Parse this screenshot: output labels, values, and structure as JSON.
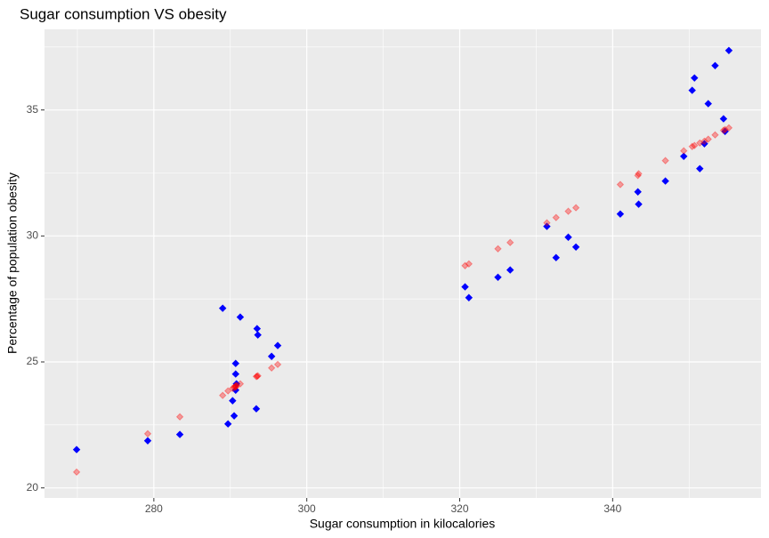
{
  "chart_data": {
    "type": "scatter",
    "title": "Sugar consumption VS obesity",
    "x_label": "Sugar consumption in kilocalories",
    "y_label": "Percentage of population obesity",
    "x": [
      269.9,
      279.2,
      283.4,
      289.0,
      289.7,
      290.3,
      290.5,
      290.7,
      290.7,
      290.8,
      290.7,
      291.3,
      293.5,
      293.6,
      293.4,
      295.4,
      296.2,
      320.7,
      321.2,
      325.0,
      326.6,
      331.4,
      332.6,
      334.2,
      335.2,
      341.0,
      343.3,
      343.4,
      346.9,
      349.3,
      350.4,
      350.7,
      351.4,
      352.0,
      352.5,
      353.4,
      354.5,
      354.7,
      355.2
    ],
    "series": [
      {
        "color": "#0000ff",
        "alpha": 1,
        "values": [
          21.52,
          21.87,
          22.12,
          27.13,
          22.54,
          23.46,
          22.86,
          24.94,
          24.52,
          24.13,
          23.88,
          26.78,
          26.32,
          26.07,
          23.14,
          25.22,
          25.65,
          27.98,
          27.55,
          28.36,
          28.65,
          30.38,
          29.14,
          29.95,
          29.56,
          30.87,
          31.75,
          31.26,
          32.18,
          33.16,
          35.78,
          36.27,
          32.67,
          33.66,
          35.25,
          36.76,
          34.65,
          34.15,
          37.36
        ]
      },
      {
        "color": "#ff0000",
        "alpha": 0.35,
        "values": [
          20.63,
          22.15,
          22.82,
          23.67,
          23.85,
          23.95,
          23.99,
          24.05,
          24.02,
          24.07,
          24.0,
          24.13,
          24.43,
          24.45,
          24.42,
          24.76,
          24.9,
          28.82,
          28.89,
          29.49,
          29.74,
          30.52,
          30.73,
          30.98,
          31.12,
          32.04,
          32.4,
          32.47,
          32.99,
          33.38,
          33.55,
          33.59,
          33.69,
          33.76,
          33.84,
          34.01,
          34.19,
          34.22,
          34.29
        ]
      }
    ],
    "xlim": [
      265.7,
      359.4
    ],
    "ylim": [
      19.6,
      38.2
    ],
    "xticks": [
      280,
      300,
      320,
      340
    ],
    "yticks": [
      20,
      25,
      30,
      35
    ],
    "grid": true
  }
}
